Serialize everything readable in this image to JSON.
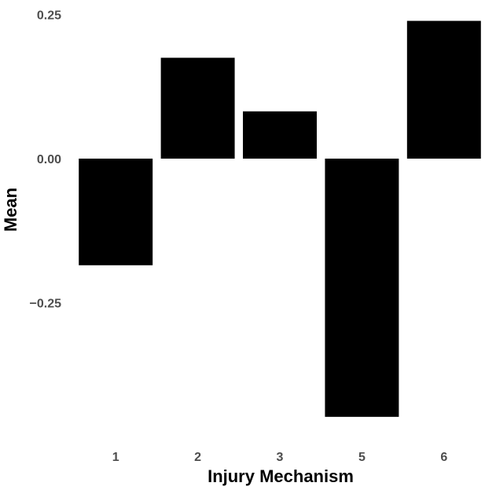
{
  "chart_data": {
    "type": "bar",
    "title": "",
    "xlabel": "Injury Mechanism",
    "ylabel": "Mean",
    "categories": [
      "1",
      "2",
      "3",
      "5",
      "6"
    ],
    "values": [
      -0.185,
      0.175,
      0.082,
      -0.448,
      0.239
    ],
    "ylim": [
      -0.47,
      0.255
    ],
    "yticks": [
      0.25,
      0.0,
      -0.25
    ],
    "ytick_labels": [
      "0.25",
      "0.00",
      "−0.25"
    ],
    "grid": false,
    "legend": "none",
    "bar_color": "#000000"
  }
}
